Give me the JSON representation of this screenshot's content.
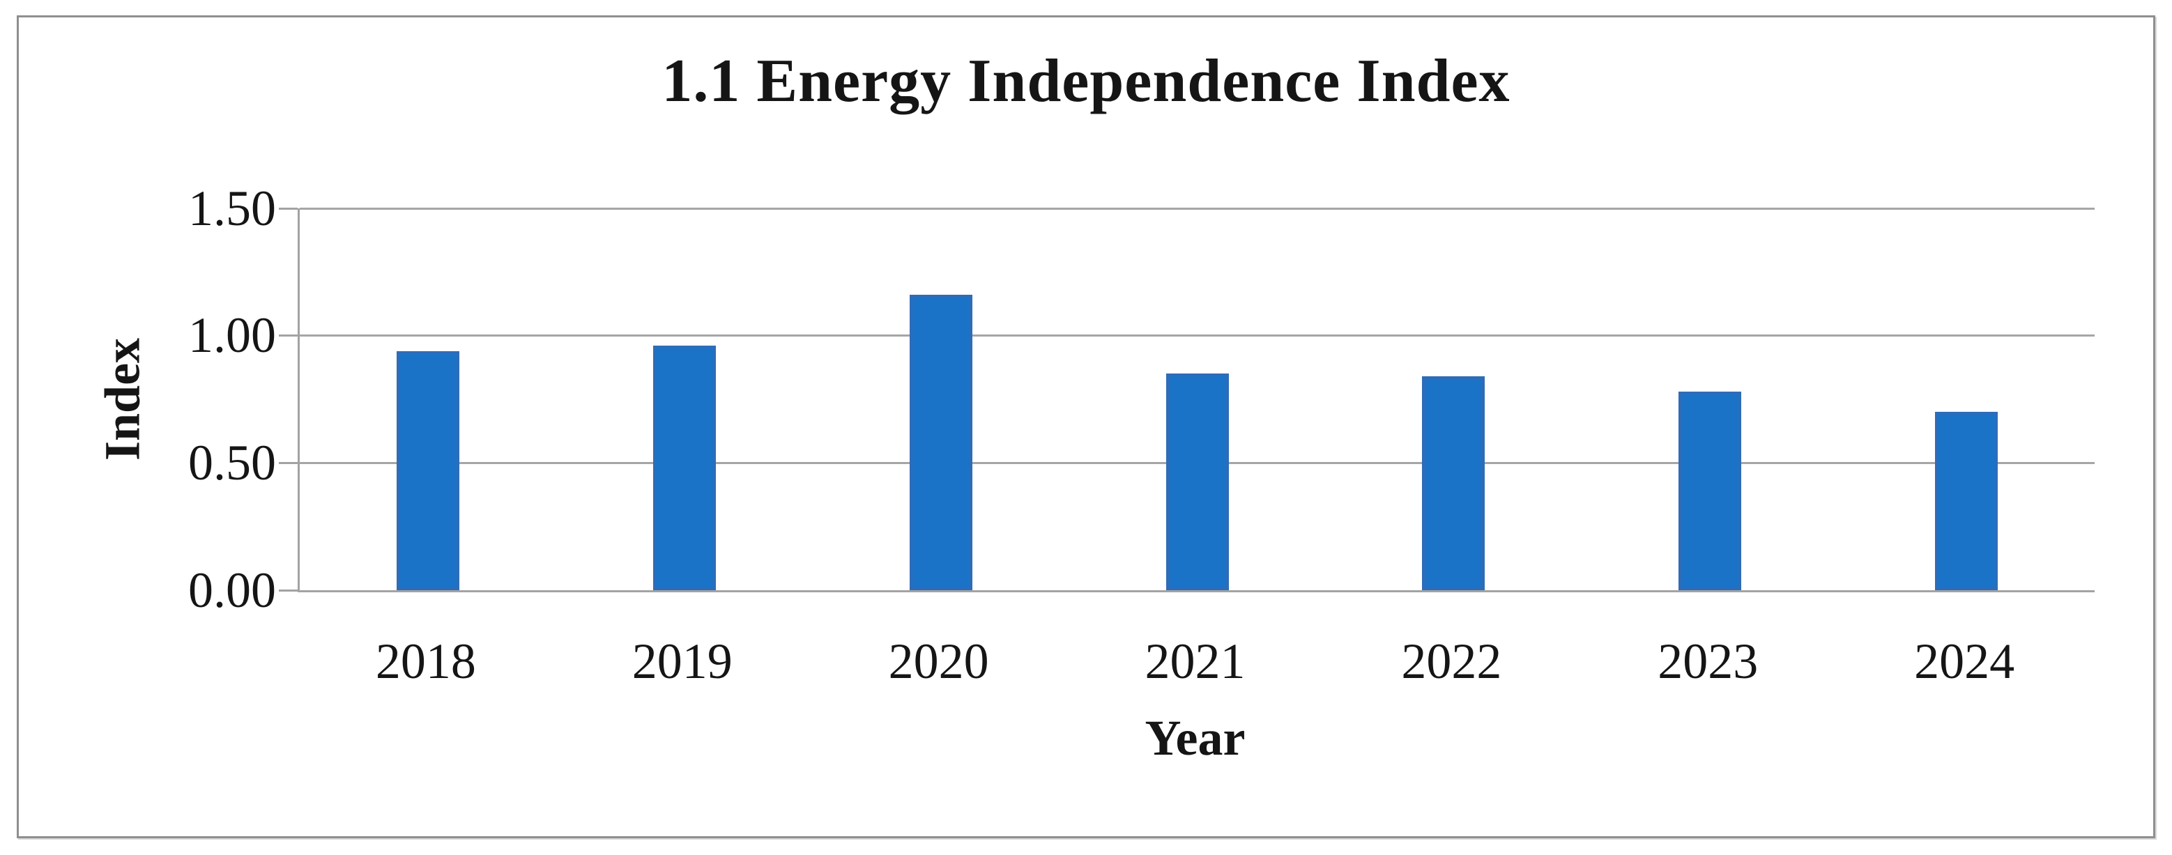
{
  "chart_data": {
    "type": "bar",
    "title": "1.1 Energy Independence Index",
    "xlabel": "Year",
    "ylabel": "Index",
    "categories": [
      "2018",
      "2019",
      "2020",
      "2021",
      "2022",
      "2023",
      "2024"
    ],
    "values": [
      0.94,
      0.96,
      1.16,
      0.85,
      0.84,
      0.78,
      0.7
    ],
    "ylim": [
      0,
      1.5
    ],
    "ytick_labels": [
      "1.50",
      "1.00",
      "0.50",
      "0.00"
    ],
    "ytick_values": [
      1.5,
      1.0,
      0.5,
      0.0
    ],
    "grid": true,
    "legend": false,
    "colors": {
      "bar_fill": "#1B73C8",
      "bar_border": "#2E6CB8",
      "gridline": "#A6A6A6",
      "axis_line": "#A3A3A3",
      "frame_border": "#8F8F8F",
      "text": "#151515",
      "background": "#FFFFFF"
    }
  }
}
